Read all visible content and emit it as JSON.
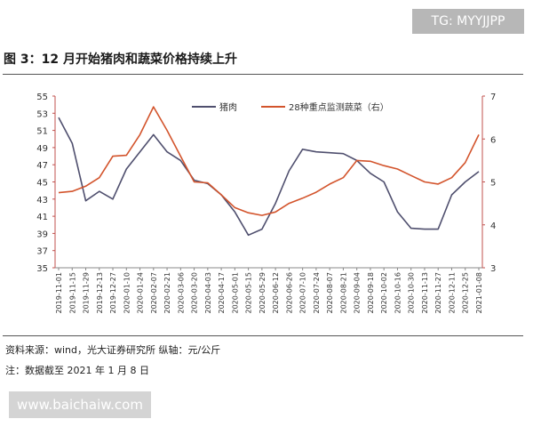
{
  "watermark_top": "TG: MYYJJPP",
  "figure_title": "图 3：12 月开始猪肉和蔬菜价格持续上升",
  "source_note": "资料来源：wind，光大证券研究所   纵轴：元/公斤",
  "date_note": "注：数据截至 2021 年 1 月 8 日",
  "watermark_bottom": "www.baichaiw.com",
  "colors": {
    "pork": "#4f4f6e",
    "vegetables": "#d3542c",
    "axis": "#c0504d"
  },
  "chart_data": {
    "type": "line",
    "title": "",
    "xlabel": "",
    "ylabel": "",
    "ylim": [
      35,
      55
    ],
    "y2lim": [
      3,
      7
    ],
    "yticks": [
      35,
      37,
      39,
      41,
      43,
      45,
      47,
      49,
      51,
      53,
      55
    ],
    "y2ticks": [
      3,
      4,
      5,
      6,
      7
    ],
    "grid": false,
    "legend": "top-center",
    "x_tick_labels": [
      "2019-11-01",
      "2019-11-15",
      "2019-11-29",
      "2019-12-13",
      "2019-12-27",
      "2020-01-10",
      "2020-01-24",
      "2020-02-07",
      "2020-02-21",
      "2020-03-06",
      "2020-03-20",
      "2020-04-03",
      "2020-04-17",
      "2020-05-01",
      "2020-05-15",
      "2020-05-29",
      "2020-06-12",
      "2020-06-26",
      "2020-07-10",
      "2020-07-24",
      "2020-08-07",
      "2020-08-21",
      "2020-09-04",
      "2020-09-18",
      "2020-10-02",
      "2020-10-16",
      "2020-10-30",
      "2020-11-13",
      "2020-11-27",
      "2020-12-11",
      "2020-12-25",
      "2021-01-08"
    ],
    "series": [
      {
        "name": "猪肉",
        "axis": "left",
        "values": [
          52.5,
          49.5,
          42.8,
          43.9,
          43.0,
          46.5,
          48.5,
          50.5,
          48.5,
          47.5,
          45.2,
          44.8,
          43.5,
          41.5,
          38.8,
          39.5,
          42.5,
          46.3,
          48.8,
          48.5,
          48.4,
          48.3,
          47.5,
          46.0,
          45.0,
          41.5,
          39.6,
          39.5,
          39.5,
          43.5,
          45.0,
          46.2
        ]
      },
      {
        "name": "28种重点监测蔬菜（右）",
        "axis": "right",
        "values": [
          4.75,
          4.78,
          4.9,
          5.1,
          5.6,
          5.62,
          6.1,
          6.75,
          6.2,
          5.6,
          5.0,
          4.98,
          4.7,
          4.4,
          4.28,
          4.22,
          4.3,
          4.5,
          4.62,
          4.76,
          4.95,
          5.1,
          5.5,
          5.48,
          5.38,
          5.3,
          5.15,
          5.0,
          4.95,
          5.1,
          5.45,
          6.1
        ]
      }
    ]
  }
}
